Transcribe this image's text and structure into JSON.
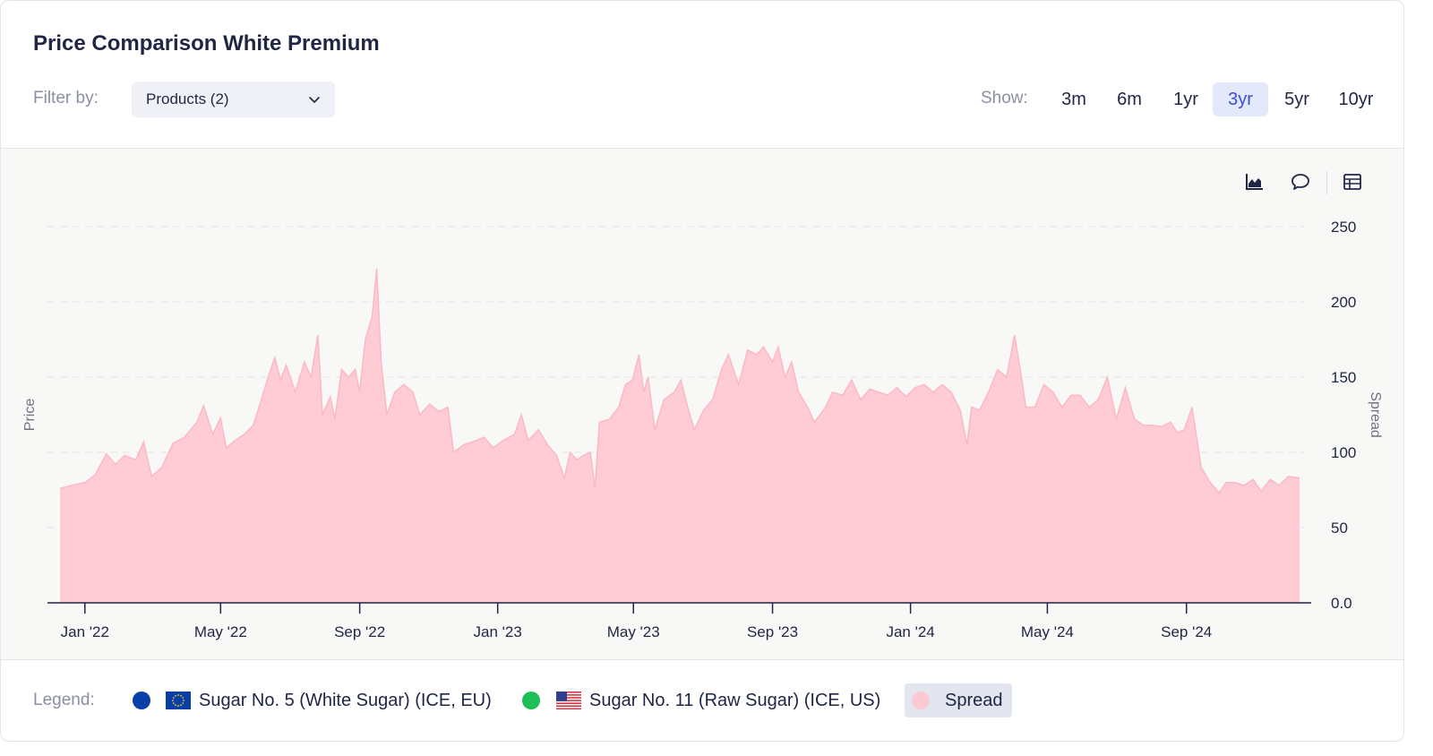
{
  "title": "Price Comparison White Premium",
  "filter": {
    "label": "Filter by:",
    "value": "Products (2)"
  },
  "show": {
    "label": "Show:",
    "options": [
      "3m",
      "6m",
      "1yr",
      "3yr",
      "5yr",
      "10yr"
    ],
    "selected": "3yr"
  },
  "toolbar": {
    "icons": [
      "area-chart-icon",
      "comment-icon",
      "table-icon"
    ]
  },
  "legend": {
    "label": "Legend:",
    "items": [
      {
        "label": "Sugar No. 5 (White Sugar) (ICE, EU)",
        "color": "#0b3fa8",
        "flag": "eu-flag-icon"
      },
      {
        "label": "Sugar No. 11 (Raw Sugar) (ICE, US)",
        "color": "#1fbf57",
        "flag": "us-flag-icon"
      },
      {
        "label": "Spread",
        "color": "#fcc9d3"
      }
    ]
  },
  "colors": {
    "spread_fill": "#ffccd6",
    "spread_line": "#fbb8c6",
    "accent": "#3b4fd8"
  },
  "chart_data": {
    "type": "area",
    "left_axis_label": "Price",
    "right_axis_label": "Spread",
    "y_ticks": [
      "0.0",
      "50",
      "100",
      "150",
      "200",
      "250"
    ],
    "ylim": [
      0,
      250
    ],
    "x_ticks": [
      "Jan '22",
      "May '22",
      "Sep '22",
      "Jan '23",
      "May '23",
      "Sep '23",
      "Jan '24",
      "May '24",
      "Sep '24"
    ],
    "x_tick_dates": [
      "2022-01-01",
      "2022-05-01",
      "2022-09-01",
      "2023-01-01",
      "2023-05-01",
      "2023-09-01",
      "2024-01-01",
      "2024-05-01",
      "2024-09-01"
    ],
    "xlim": [
      "2021-12-10",
      "2024-12-10"
    ],
    "grid": true,
    "series": [
      {
        "name": "Spread",
        "points": [
          [
            "2021-12-10",
            76
          ],
          [
            "2021-12-20",
            78
          ],
          [
            "2022-01-01",
            80
          ],
          [
            "2022-01-10",
            85
          ],
          [
            "2022-01-20",
            99
          ],
          [
            "2022-01-28",
            92
          ],
          [
            "2022-02-05",
            98
          ],
          [
            "2022-02-15",
            95
          ],
          [
            "2022-02-22",
            107
          ],
          [
            "2022-03-01",
            84
          ],
          [
            "2022-03-10",
            90
          ],
          [
            "2022-03-20",
            106
          ],
          [
            "2022-03-30",
            110
          ],
          [
            "2022-04-10",
            120
          ],
          [
            "2022-04-16",
            131
          ],
          [
            "2022-04-24",
            112
          ],
          [
            "2022-05-01",
            123
          ],
          [
            "2022-05-06",
            103
          ],
          [
            "2022-05-14",
            108
          ],
          [
            "2022-05-22",
            112
          ],
          [
            "2022-05-30",
            118
          ],
          [
            "2022-06-06",
            135
          ],
          [
            "2022-06-12",
            150
          ],
          [
            "2022-06-18",
            163
          ],
          [
            "2022-06-23",
            148
          ],
          [
            "2022-06-28",
            158
          ],
          [
            "2022-07-06",
            140
          ],
          [
            "2022-07-14",
            160
          ],
          [
            "2022-07-20",
            150
          ],
          [
            "2022-07-26",
            178
          ],
          [
            "2022-07-30",
            125
          ],
          [
            "2022-08-06",
            137
          ],
          [
            "2022-08-10",
            122
          ],
          [
            "2022-08-16",
            155
          ],
          [
            "2022-08-22",
            150
          ],
          [
            "2022-08-28",
            155
          ],
          [
            "2022-09-01",
            140
          ],
          [
            "2022-09-06",
            175
          ],
          [
            "2022-09-12",
            190
          ],
          [
            "2022-09-16",
            222
          ],
          [
            "2022-09-20",
            160
          ],
          [
            "2022-09-25",
            125
          ],
          [
            "2022-10-02",
            140
          ],
          [
            "2022-10-10",
            145
          ],
          [
            "2022-10-18",
            140
          ],
          [
            "2022-10-24",
            125
          ],
          [
            "2022-11-02",
            132
          ],
          [
            "2022-11-10",
            127
          ],
          [
            "2022-11-18",
            130
          ],
          [
            "2022-11-23",
            100
          ],
          [
            "2022-12-02",
            105
          ],
          [
            "2022-12-10",
            107
          ],
          [
            "2022-12-20",
            110
          ],
          [
            "2022-12-28",
            103
          ],
          [
            "2023-01-06",
            108
          ],
          [
            "2023-01-16",
            112
          ],
          [
            "2023-01-22",
            125
          ],
          [
            "2023-01-28",
            108
          ],
          [
            "2023-02-06",
            115
          ],
          [
            "2023-02-14",
            105
          ],
          [
            "2023-02-22",
            98
          ],
          [
            "2023-03-01",
            83
          ],
          [
            "2023-03-06",
            100
          ],
          [
            "2023-03-12",
            95
          ],
          [
            "2023-03-18",
            98
          ],
          [
            "2023-03-24",
            100
          ],
          [
            "2023-03-28",
            76
          ],
          [
            "2023-04-01",
            120
          ],
          [
            "2023-04-10",
            122
          ],
          [
            "2023-04-18",
            130
          ],
          [
            "2023-04-24",
            145
          ],
          [
            "2023-04-30",
            148
          ],
          [
            "2023-05-06",
            165
          ],
          [
            "2023-05-10",
            140
          ],
          [
            "2023-05-14",
            150
          ],
          [
            "2023-05-20",
            115
          ],
          [
            "2023-05-28",
            135
          ],
          [
            "2023-06-06",
            140
          ],
          [
            "2023-06-12",
            148
          ],
          [
            "2023-06-18",
            130
          ],
          [
            "2023-06-24",
            115
          ],
          [
            "2023-07-02",
            128
          ],
          [
            "2023-07-10",
            135
          ],
          [
            "2023-07-18",
            155
          ],
          [
            "2023-07-24",
            165
          ],
          [
            "2023-08-02",
            145
          ],
          [
            "2023-08-10",
            168
          ],
          [
            "2023-08-18",
            165
          ],
          [
            "2023-08-24",
            170
          ],
          [
            "2023-09-01",
            160
          ],
          [
            "2023-09-06",
            170
          ],
          [
            "2023-09-12",
            150
          ],
          [
            "2023-09-18",
            160
          ],
          [
            "2023-09-24",
            140
          ],
          [
            "2023-10-02",
            130
          ],
          [
            "2023-10-08",
            120
          ],
          [
            "2023-10-18",
            130
          ],
          [
            "2023-10-24",
            140
          ],
          [
            "2023-11-02",
            138
          ],
          [
            "2023-11-10",
            148
          ],
          [
            "2023-11-18",
            135
          ],
          [
            "2023-11-26",
            142
          ],
          [
            "2023-12-04",
            140
          ],
          [
            "2023-12-12",
            138
          ],
          [
            "2023-12-20",
            143
          ],
          [
            "2023-12-28",
            137
          ],
          [
            "2024-01-05",
            143
          ],
          [
            "2024-01-13",
            145
          ],
          [
            "2024-01-21",
            140
          ],
          [
            "2024-01-29",
            145
          ],
          [
            "2024-02-06",
            140
          ],
          [
            "2024-02-14",
            128
          ],
          [
            "2024-02-20",
            105
          ],
          [
            "2024-02-24",
            130
          ],
          [
            "2024-03-02",
            128
          ],
          [
            "2024-03-10",
            140
          ],
          [
            "2024-03-18",
            155
          ],
          [
            "2024-03-26",
            150
          ],
          [
            "2024-04-02",
            178
          ],
          [
            "2024-04-08",
            150
          ],
          [
            "2024-04-12",
            130
          ],
          [
            "2024-04-20",
            130
          ],
          [
            "2024-04-28",
            145
          ],
          [
            "2024-05-06",
            140
          ],
          [
            "2024-05-14",
            130
          ],
          [
            "2024-05-22",
            138
          ],
          [
            "2024-05-30",
            138
          ],
          [
            "2024-06-07",
            130
          ],
          [
            "2024-06-15",
            135
          ],
          [
            "2024-06-23",
            150
          ],
          [
            "2024-07-01",
            122
          ],
          [
            "2024-07-09",
            143
          ],
          [
            "2024-07-17",
            122
          ],
          [
            "2024-07-25",
            118
          ],
          [
            "2024-08-02",
            118
          ],
          [
            "2024-08-10",
            117
          ],
          [
            "2024-08-18",
            120
          ],
          [
            "2024-08-24",
            113
          ],
          [
            "2024-08-30",
            115
          ],
          [
            "2024-09-06",
            130
          ],
          [
            "2024-09-14",
            90
          ],
          [
            "2024-09-22",
            80
          ],
          [
            "2024-09-30",
            73
          ],
          [
            "2024-10-06",
            80
          ],
          [
            "2024-10-14",
            80
          ],
          [
            "2024-10-22",
            78
          ],
          [
            "2024-10-30",
            82
          ],
          [
            "2024-11-06",
            74
          ],
          [
            "2024-11-14",
            82
          ],
          [
            "2024-11-22",
            78
          ],
          [
            "2024-11-30",
            84
          ],
          [
            "2024-12-10",
            83
          ]
        ]
      }
    ]
  }
}
